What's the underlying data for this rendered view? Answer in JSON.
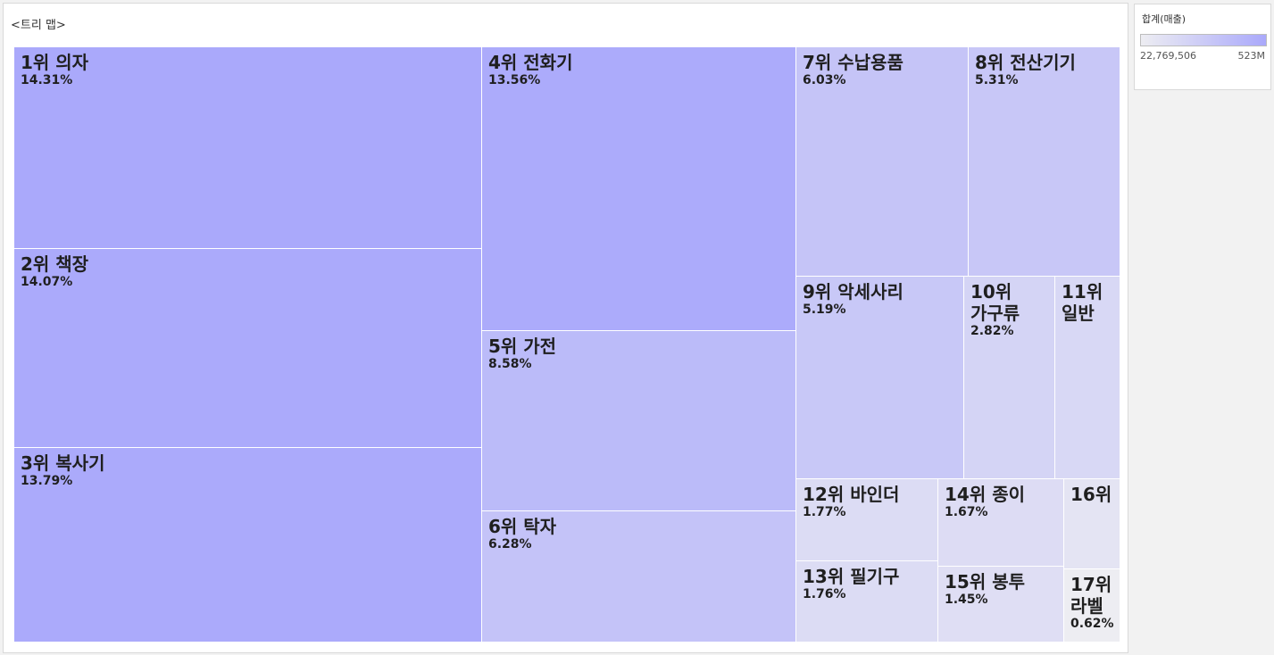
{
  "viz": {
    "title": "<트리 맵>"
  },
  "legend": {
    "title": "합계(매출)",
    "min_label": "22,769,506",
    "max_label": "523M",
    "color_low": "#ededf2",
    "color_high": "#aaa9fb"
  },
  "chart_data": {
    "type": "treemap",
    "title": "<트리 맵>",
    "color_measure": "합계(매출)",
    "items": [
      {
        "label": "1위 의자",
        "value": 14.31,
        "pct": "14.31%"
      },
      {
        "label": "2위 책장",
        "value": 14.07,
        "pct": "14.07%"
      },
      {
        "label": "3위 복사기",
        "value": 13.79,
        "pct": "13.79%"
      },
      {
        "label": "4위 전화기",
        "value": 13.56,
        "pct": "13.56%"
      },
      {
        "label": "5위 가전",
        "value": 8.58,
        "pct": "8.58%"
      },
      {
        "label": "6위 탁자",
        "value": 6.28,
        "pct": "6.28%"
      },
      {
        "label": "7위 수납용품",
        "value": 6.03,
        "pct": "6.03%"
      },
      {
        "label": "8위 전산기기",
        "value": 5.31,
        "pct": "5.31%"
      },
      {
        "label": "9위 악세사리",
        "value": 5.19,
        "pct": "5.19%"
      },
      {
        "label": "10위 가구류",
        "value": 2.82,
        "pct": "2.82%"
      },
      {
        "label": "11위 일반",
        "value": 2.25,
        "pct": ""
      },
      {
        "label": "12위 바인더",
        "value": 1.77,
        "pct": "1.77%"
      },
      {
        "label": "13위 필기구",
        "value": 1.76,
        "pct": "1.76%"
      },
      {
        "label": "14위 종이",
        "value": 1.67,
        "pct": "1.67%"
      },
      {
        "label": "15위 봉투",
        "value": 1.45,
        "pct": "1.45%"
      },
      {
        "label": "16위",
        "value": 1.0,
        "pct": ""
      },
      {
        "label": "17위 라벨",
        "value": 0.62,
        "pct": "0.62%"
      }
    ]
  }
}
